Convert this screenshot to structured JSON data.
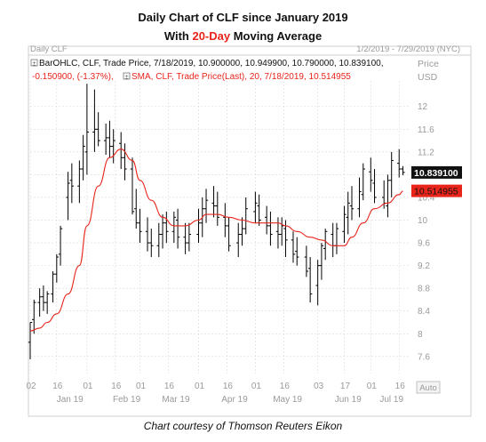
{
  "header": {
    "title_line1": "Daily Chart of CLF since January 2019",
    "title_line2_prefix": "With ",
    "title_line2_highlight": "20-Day",
    "title_line2_suffix": " Moving Average"
  },
  "chart_header": {
    "name": "Daily CLF",
    "range": "1/2/2019 - 7/29/2019 (NYC)",
    "legend_ohlc_line1": "BarOHLC, CLF, Trade Price, 7/18/2019, 10.900000, 10.949900, 10.790000, 10.839100,",
    "legend_ohlc_line2": "-0.150900, (-1.37%),",
    "legend_sma": "SMA, CLF, Trade Price(Last),  20,  7/18/2019, 10.514955",
    "price_unit_line1": "Price",
    "price_unit_line2": "USD",
    "auto_label": "Auto"
  },
  "caption": "Chart courtesy of Thomson Reuters Eikon",
  "colors": {
    "bars": "#000000",
    "sma": "#e8241b",
    "grid": "#d9d9d9",
    "last_price_box": "#111111",
    "sma_box": "#e8241b"
  },
  "chart_data": {
    "type": "line",
    "title": "Daily Chart of CLF since January 2019",
    "y_ticks": [
      7.6,
      8,
      8.4,
      8.8,
      9.2,
      9.6,
      10,
      10.4,
      10.8,
      11.2,
      11.6,
      12
    ],
    "ylim": [
      7.3,
      12.45
    ],
    "x_ticks": [
      "02",
      "16",
      "01",
      "16",
      "01",
      "16",
      "01",
      "16",
      "01",
      "16",
      "03",
      "17",
      "01",
      "16"
    ],
    "x_tick_dates": [
      "2019-01-02",
      "2019-01-16",
      "2019-02-01",
      "2019-02-16",
      "2019-03-01",
      "2019-03-16",
      "2019-04-01",
      "2019-04-16",
      "2019-05-01",
      "2019-05-16",
      "2019-06-03",
      "2019-06-17",
      "2019-07-01",
      "2019-07-16"
    ],
    "months": [
      "Jan 19",
      "Feb 19",
      "Mar 19",
      "Apr 19",
      "May 19",
      "Jun 19",
      "Jul 19"
    ],
    "last_price_label": "10.839100",
    "sma_label": "10.514955",
    "series": [
      {
        "name": "BarOHLC, CLF, Trade Price",
        "kind": "ohlc",
        "dates": [
          "2019-01-02",
          "2019-01-04",
          "2019-01-07",
          "2019-01-09",
          "2019-01-11",
          "2019-01-14",
          "2019-01-16",
          "2019-01-18",
          "2019-01-22",
          "2019-01-24",
          "2019-01-28",
          "2019-01-30",
          "2019-02-01",
          "2019-02-05",
          "2019-02-07",
          "2019-02-11",
          "2019-02-13",
          "2019-02-15",
          "2019-02-19",
          "2019-02-21",
          "2019-02-25",
          "2019-02-27",
          "2019-03-01",
          "2019-03-05",
          "2019-03-07",
          "2019-03-11",
          "2019-03-13",
          "2019-03-15",
          "2019-03-19",
          "2019-03-21",
          "2019-03-25",
          "2019-03-27",
          "2019-04-01",
          "2019-04-03",
          "2019-04-05",
          "2019-04-09",
          "2019-04-11",
          "2019-04-15",
          "2019-04-17",
          "2019-04-22",
          "2019-04-24",
          "2019-04-26",
          "2019-05-01",
          "2019-05-03",
          "2019-05-07",
          "2019-05-09",
          "2019-05-13",
          "2019-05-15",
          "2019-05-17",
          "2019-05-21",
          "2019-05-23",
          "2019-05-28",
          "2019-05-30",
          "2019-06-03",
          "2019-06-05",
          "2019-06-07",
          "2019-06-11",
          "2019-06-13",
          "2019-06-17",
          "2019-06-19",
          "2019-06-21",
          "2019-06-25",
          "2019-06-27",
          "2019-07-01",
          "2019-07-03",
          "2019-07-08",
          "2019-07-10",
          "2019-07-12",
          "2019-07-16",
          "2019-07-18"
        ],
        "open": [
          7.85,
          8.25,
          8.55,
          8.65,
          8.55,
          8.7,
          9.05,
          9.4,
          10.4,
          10.7,
          10.6,
          10.9,
          11.2,
          11.55,
          11.6,
          11.4,
          11.45,
          11.3,
          11.35,
          11.1,
          10.9,
          10.2,
          9.95,
          9.8,
          9.6,
          9.55,
          9.75,
          9.95,
          9.8,
          10.0,
          9.7,
          9.6,
          9.75,
          9.95,
          10.2,
          10.3,
          10.25,
          10.05,
          9.9,
          9.6,
          9.75,
          9.85,
          10.15,
          10.25,
          10.05,
          9.9,
          9.8,
          9.75,
          9.85,
          9.65,
          9.45,
          9.35,
          9.15,
          8.85,
          9.2,
          9.5,
          9.75,
          9.55,
          9.8,
          10.05,
          10.25,
          10.2,
          10.45,
          10.85,
          10.65,
          10.4,
          10.25,
          10.7,
          11.0,
          10.9
        ],
        "high": [
          8.2,
          8.6,
          8.8,
          8.85,
          8.75,
          9.1,
          9.4,
          9.9,
          10.85,
          11.0,
          11.05,
          11.5,
          12.4,
          12.3,
          11.9,
          11.7,
          11.75,
          11.6,
          11.55,
          11.35,
          11.1,
          10.55,
          10.2,
          10.05,
          9.85,
          9.95,
          10.1,
          10.15,
          10.15,
          10.2,
          9.95,
          9.95,
          10.2,
          10.4,
          10.55,
          10.6,
          10.5,
          10.3,
          10.05,
          9.95,
          10.05,
          10.4,
          10.5,
          10.45,
          10.25,
          10.15,
          10.05,
          10.05,
          10.0,
          9.8,
          9.7,
          9.55,
          9.35,
          9.3,
          9.6,
          9.85,
          9.95,
          9.95,
          10.25,
          10.5,
          10.6,
          10.75,
          11.0,
          11.1,
          10.9,
          10.7,
          10.8,
          11.2,
          11.25,
          10.95
        ],
        "low": [
          7.55,
          8.0,
          8.3,
          8.4,
          8.35,
          8.55,
          8.9,
          9.2,
          10.0,
          10.3,
          10.3,
          10.7,
          10.8,
          11.2,
          11.3,
          11.15,
          11.1,
          11.0,
          10.9,
          10.7,
          10.1,
          9.85,
          9.6,
          9.45,
          9.35,
          9.35,
          9.5,
          9.6,
          9.6,
          9.5,
          9.4,
          9.45,
          9.6,
          9.7,
          9.95,
          10.05,
          9.9,
          9.7,
          9.45,
          9.35,
          9.55,
          9.75,
          9.95,
          9.9,
          9.75,
          9.55,
          9.5,
          9.55,
          9.35,
          9.25,
          9.2,
          9.0,
          8.55,
          8.5,
          8.95,
          9.3,
          9.35,
          9.4,
          9.6,
          9.75,
          10.0,
          10.05,
          10.35,
          10.5,
          10.3,
          10.2,
          10.05,
          10.4,
          10.75,
          10.79
        ],
        "close": [
          8.2,
          8.55,
          8.65,
          8.55,
          8.7,
          9.05,
          9.35,
          9.85,
          10.65,
          10.6,
          10.9,
          11.3,
          11.55,
          11.6,
          11.4,
          11.45,
          11.3,
          11.4,
          11.1,
          10.9,
          10.15,
          9.95,
          9.8,
          9.6,
          9.55,
          9.75,
          9.95,
          9.8,
          10.05,
          9.7,
          9.6,
          9.75,
          9.95,
          10.2,
          10.35,
          10.25,
          10.05,
          9.9,
          9.55,
          9.75,
          9.85,
          10.2,
          10.3,
          10.0,
          9.9,
          9.75,
          9.75,
          9.9,
          9.65,
          9.4,
          9.35,
          9.1,
          8.7,
          9.2,
          9.55,
          9.8,
          9.55,
          9.85,
          10.1,
          10.3,
          10.2,
          10.5,
          10.9,
          10.7,
          10.4,
          10.3,
          10.7,
          11.05,
          10.9,
          10.84
        ]
      },
      {
        "name": "SMA, CLF, Trade Price(Last), 20",
        "kind": "line",
        "dates": [
          "2019-01-02",
          "2019-01-07",
          "2019-01-11",
          "2019-01-16",
          "2019-01-22",
          "2019-01-28",
          "2019-02-01",
          "2019-02-07",
          "2019-02-13",
          "2019-02-19",
          "2019-02-25",
          "2019-03-01",
          "2019-03-07",
          "2019-03-13",
          "2019-03-19",
          "2019-03-25",
          "2019-04-01",
          "2019-04-05",
          "2019-04-11",
          "2019-04-17",
          "2019-04-24",
          "2019-05-01",
          "2019-05-07",
          "2019-05-13",
          "2019-05-17",
          "2019-05-23",
          "2019-05-30",
          "2019-06-05",
          "2019-06-11",
          "2019-06-17",
          "2019-06-21",
          "2019-06-27",
          "2019-07-03",
          "2019-07-10",
          "2019-07-16",
          "2019-07-18"
        ],
        "values": [
          8.05,
          8.1,
          8.2,
          8.35,
          8.7,
          9.2,
          9.9,
          10.6,
          11.1,
          11.25,
          11.05,
          10.7,
          10.35,
          10.05,
          9.9,
          9.9,
          10.0,
          10.1,
          10.1,
          10.05,
          10.0,
          9.95,
          9.95,
          9.95,
          9.9,
          9.8,
          9.7,
          9.65,
          9.55,
          9.55,
          9.7,
          9.95,
          10.2,
          10.3,
          10.45,
          10.51
        ]
      }
    ]
  }
}
